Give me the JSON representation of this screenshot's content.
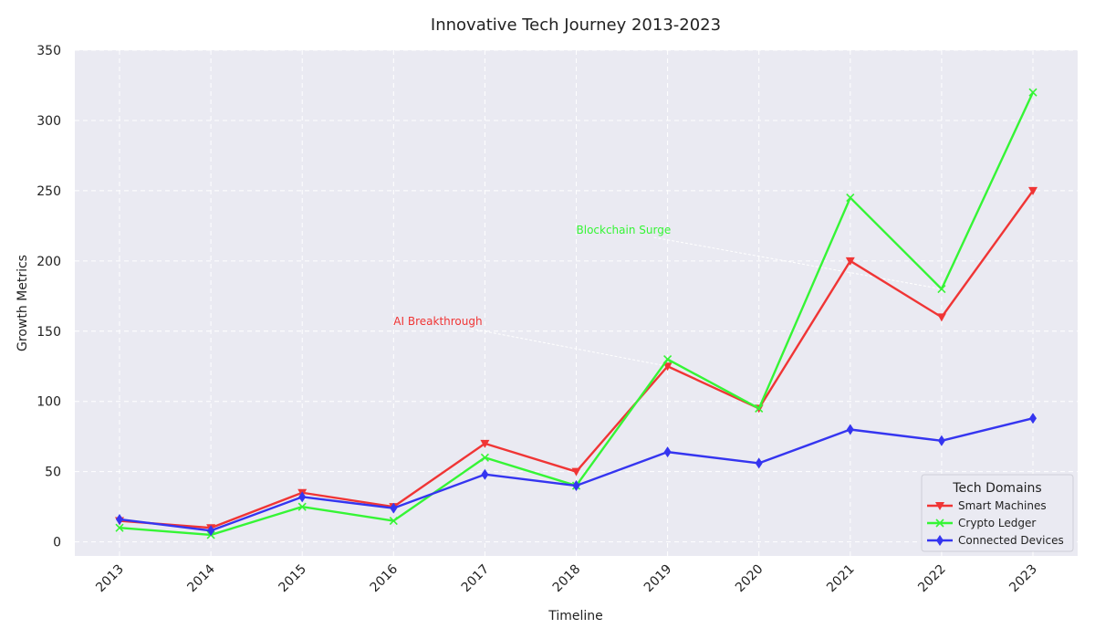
{
  "chart_data": {
    "type": "line",
    "title": "Innovative Tech Journey 2013-2023",
    "xlabel": "Timeline",
    "ylabel": "Growth Metrics",
    "x": [
      "2013",
      "2014",
      "2015",
      "2016",
      "2017",
      "2018",
      "2019",
      "2020",
      "2021",
      "2022",
      "2023"
    ],
    "ylim": [
      -10,
      350
    ],
    "yticks": [
      0,
      50,
      100,
      150,
      200,
      250,
      300,
      350
    ],
    "grid": true,
    "legend": {
      "title": "Tech Domains",
      "placement": "bottom-right"
    },
    "series": [
      {
        "name": "Smart Machines",
        "color": "#f03535",
        "marker": "triangle-down",
        "values": [
          15,
          10,
          35,
          25,
          70,
          50,
          125,
          95,
          200,
          160,
          250
        ]
      },
      {
        "name": "Crypto Ledger",
        "color": "#35f535",
        "marker": "x",
        "values": [
          10,
          5,
          25,
          15,
          60,
          40,
          130,
          95,
          245,
          180,
          320
        ]
      },
      {
        "name": "Connected Devices",
        "color": "#3535f0",
        "marker": "diamond",
        "values": [
          16,
          8,
          32,
          24,
          48,
          40,
          64,
          56,
          80,
          72,
          88
        ]
      }
    ],
    "annotations": [
      {
        "text": "AI Breakthrough",
        "color": "#f03535",
        "text_x": 3,
        "text_y": 155,
        "target_x": 6,
        "target_y": 125
      },
      {
        "text": "Blockchain Surge",
        "color": "#35f535",
        "text_x": 5,
        "text_y": 220,
        "target_x": 9,
        "target_y": 180
      }
    ]
  }
}
